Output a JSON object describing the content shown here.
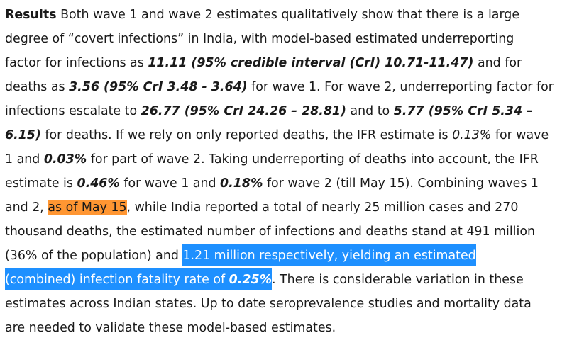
{
  "abstract": {
    "lines": [
      [
        {
          "text": "Results",
          "style": "bold"
        },
        {
          "text": " Both wave 1 and wave 2 estimates qualitatively show that there is a large",
          "style": "plain"
        }
      ],
      [
        {
          "text": "degree of “covert infections” in India, with model-based estimated underreporting",
          "style": "plain"
        }
      ],
      [
        {
          "text": "factor for infections as ",
          "style": "plain"
        },
        {
          "text": "11.11 (95% credible interval (CrI) 10.71-11.47)",
          "style": "bi"
        },
        {
          "text": " and for",
          "style": "plain"
        }
      ],
      [
        {
          "text": "deaths as ",
          "style": "plain"
        },
        {
          "text": "3.56 (95% CrI 3.48 - 3.64)",
          "style": "bi"
        },
        {
          "text": " for wave 1. For wave 2, underreporting factor for",
          "style": "plain"
        }
      ],
      [
        {
          "text": "infections escalate to ",
          "style": "plain"
        },
        {
          "text": "26.77 (95% CrI 24.26 – 28.81)",
          "style": "bi"
        },
        {
          "text": " and to ",
          "style": "plain"
        },
        {
          "text": "5.77 (95% CrI 5.34 –",
          "style": "bi"
        }
      ],
      [
        {
          "text": "6.15)",
          "style": "bi"
        },
        {
          "text": " for deaths. If we rely on only reported deaths, the IFR estimate is ",
          "style": "plain"
        },
        {
          "text": "0.13%",
          "style": "it"
        },
        {
          "text": " for wave",
          "style": "plain"
        }
      ],
      [
        {
          "text": "1 and ",
          "style": "plain"
        },
        {
          "text": "0.03%",
          "style": "bi"
        },
        {
          "text": " for part of wave 2. Taking underreporting of deaths into account, the IFR",
          "style": "plain"
        }
      ],
      [
        {
          "text": "estimate is ",
          "style": "plain"
        },
        {
          "text": "0.46%",
          "style": "bi"
        },
        {
          "text": " for wave 1 and ",
          "style": "plain"
        },
        {
          "text": "0.18%",
          "style": "bi"
        },
        {
          "text": " for wave 2 (till May 15). Combining waves 1",
          "style": "plain"
        }
      ],
      [
        {
          "text": "and 2, ",
          "style": "plain"
        },
        {
          "text": "as of May 15",
          "style": "hl-orange"
        },
        {
          "text": ", while India reported a total of nearly 25 million cases and 270",
          "style": "plain"
        }
      ],
      [
        {
          "text": "thousand deaths, the estimated number of infections and deaths stand at 491 million",
          "style": "plain"
        }
      ],
      [
        {
          "text": "(36% of the population) and ",
          "style": "plain"
        },
        {
          "text": "1.21 million respectively, yielding an estimated",
          "style": "hl-blue"
        }
      ],
      [
        {
          "text": "(combined) infection fatality rate of ",
          "style": "hl-blue"
        },
        {
          "text": "0.25%",
          "style": "hl-blue-bi"
        },
        {
          "text": ". There is considerable variation in these",
          "style": "plain"
        }
      ],
      [
        {
          "text": "estimates across Indian states. Up to date seroprevalence studies and mortality data",
          "style": "plain"
        }
      ],
      [
        {
          "text": "are needed to validate these model-based estimates.",
          "style": "plain"
        }
      ]
    ],
    "colors": {
      "text": "#1a1a1a",
      "find_highlight": "#ff9632",
      "selection_highlight": "#1e90ff",
      "selection_text": "#ffffff"
    }
  }
}
